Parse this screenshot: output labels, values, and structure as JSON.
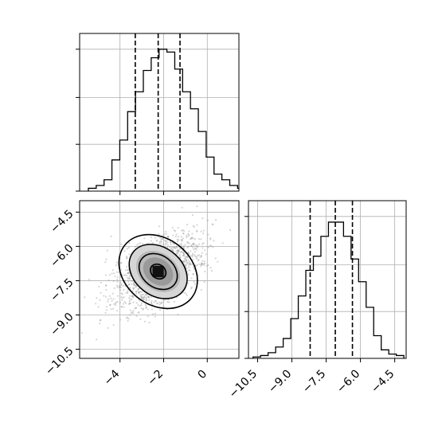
{
  "chart_data": [
    {
      "panel": "top-left",
      "type": "histogram",
      "x_ticks": [
        -4,
        -2,
        0
      ],
      "x_tick_labels_shown": false,
      "xlim": [
        -5.85,
        1.45
      ],
      "grid": true,
      "bin_counts_relative": [
        0.02,
        0.04,
        0.08,
        0.22,
        0.36,
        0.56,
        0.7,
        0.85,
        0.94,
        1.0,
        0.98,
        0.86,
        0.7,
        0.58,
        0.42,
        0.24,
        0.12,
        0.08,
        0.04,
        0.02,
        0.01
      ],
      "bin_edges": [
        -5.45,
        -5.09,
        -4.73,
        -4.37,
        -4.01,
        -3.65,
        -3.29,
        -2.93,
        -2.57,
        -2.21,
        -1.85,
        -1.49,
        -1.13,
        -0.77,
        -0.41,
        -0.05,
        0.31,
        0.67,
        1.03,
        1.39,
        1.75,
        2.11
      ],
      "quantile_lines": [
        -3.3,
        -2.25,
        -1.25
      ]
    },
    {
      "panel": "bottom-left",
      "type": "scatter+contour",
      "x_ticks": [
        -4,
        -2,
        0
      ],
      "x_tick_labels": [
        "−4",
        "−2",
        "0"
      ],
      "y_ticks": [
        -4.5,
        -6.0,
        -7.5,
        -9.0,
        -10.5
      ],
      "y_tick_labels": [
        "−4.5",
        "−6.0",
        "−7.5",
        "−9.0",
        "−10.5"
      ],
      "xlim": [
        -5.85,
        1.45
      ],
      "ylim": [
        -10.9,
        -4.0
      ],
      "grid": true,
      "center": [
        -2.25,
        -7.1
      ],
      "contour_levels": [
        {
          "rx": 1.95,
          "ry": 1.45,
          "angle_deg": -38
        },
        {
          "rx": 1.45,
          "ry": 1.05,
          "angle_deg": -38
        },
        {
          "rx": 0.95,
          "ry": 0.7,
          "angle_deg": -38
        },
        {
          "rx": 0.38,
          "ry": 0.3,
          "angle_deg": -38
        }
      ]
    },
    {
      "panel": "bottom-right",
      "type": "histogram",
      "x_ticks": [
        -10.5,
        -9.0,
        -7.5,
        -6.0,
        -4.5
      ],
      "x_tick_labels": [
        "−10.5",
        "−9.0",
        "−7.5",
        "−6.0",
        "−4.5"
      ],
      "xlim": [
        -10.9,
        -4.0
      ],
      "grid": true,
      "bin_counts_relative": [
        0.01,
        0.02,
        0.04,
        0.08,
        0.14,
        0.28,
        0.44,
        0.62,
        0.72,
        0.86,
        0.96,
        0.96,
        0.86,
        0.7,
        0.54,
        0.36,
        0.16,
        0.06,
        0.03,
        0.02
      ],
      "bin_edges": [
        -10.7,
        -10.37,
        -10.04,
        -9.71,
        -9.38,
        -9.05,
        -8.72,
        -8.39,
        -8.06,
        -7.73,
        -7.4,
        -7.07,
        -6.74,
        -6.41,
        -6.08,
        -5.75,
        -5.42,
        -5.09,
        -4.76,
        -4.43,
        -4.1
      ],
      "quantile_lines": [
        -8.2,
        -7.1,
        -6.35
      ]
    }
  ]
}
